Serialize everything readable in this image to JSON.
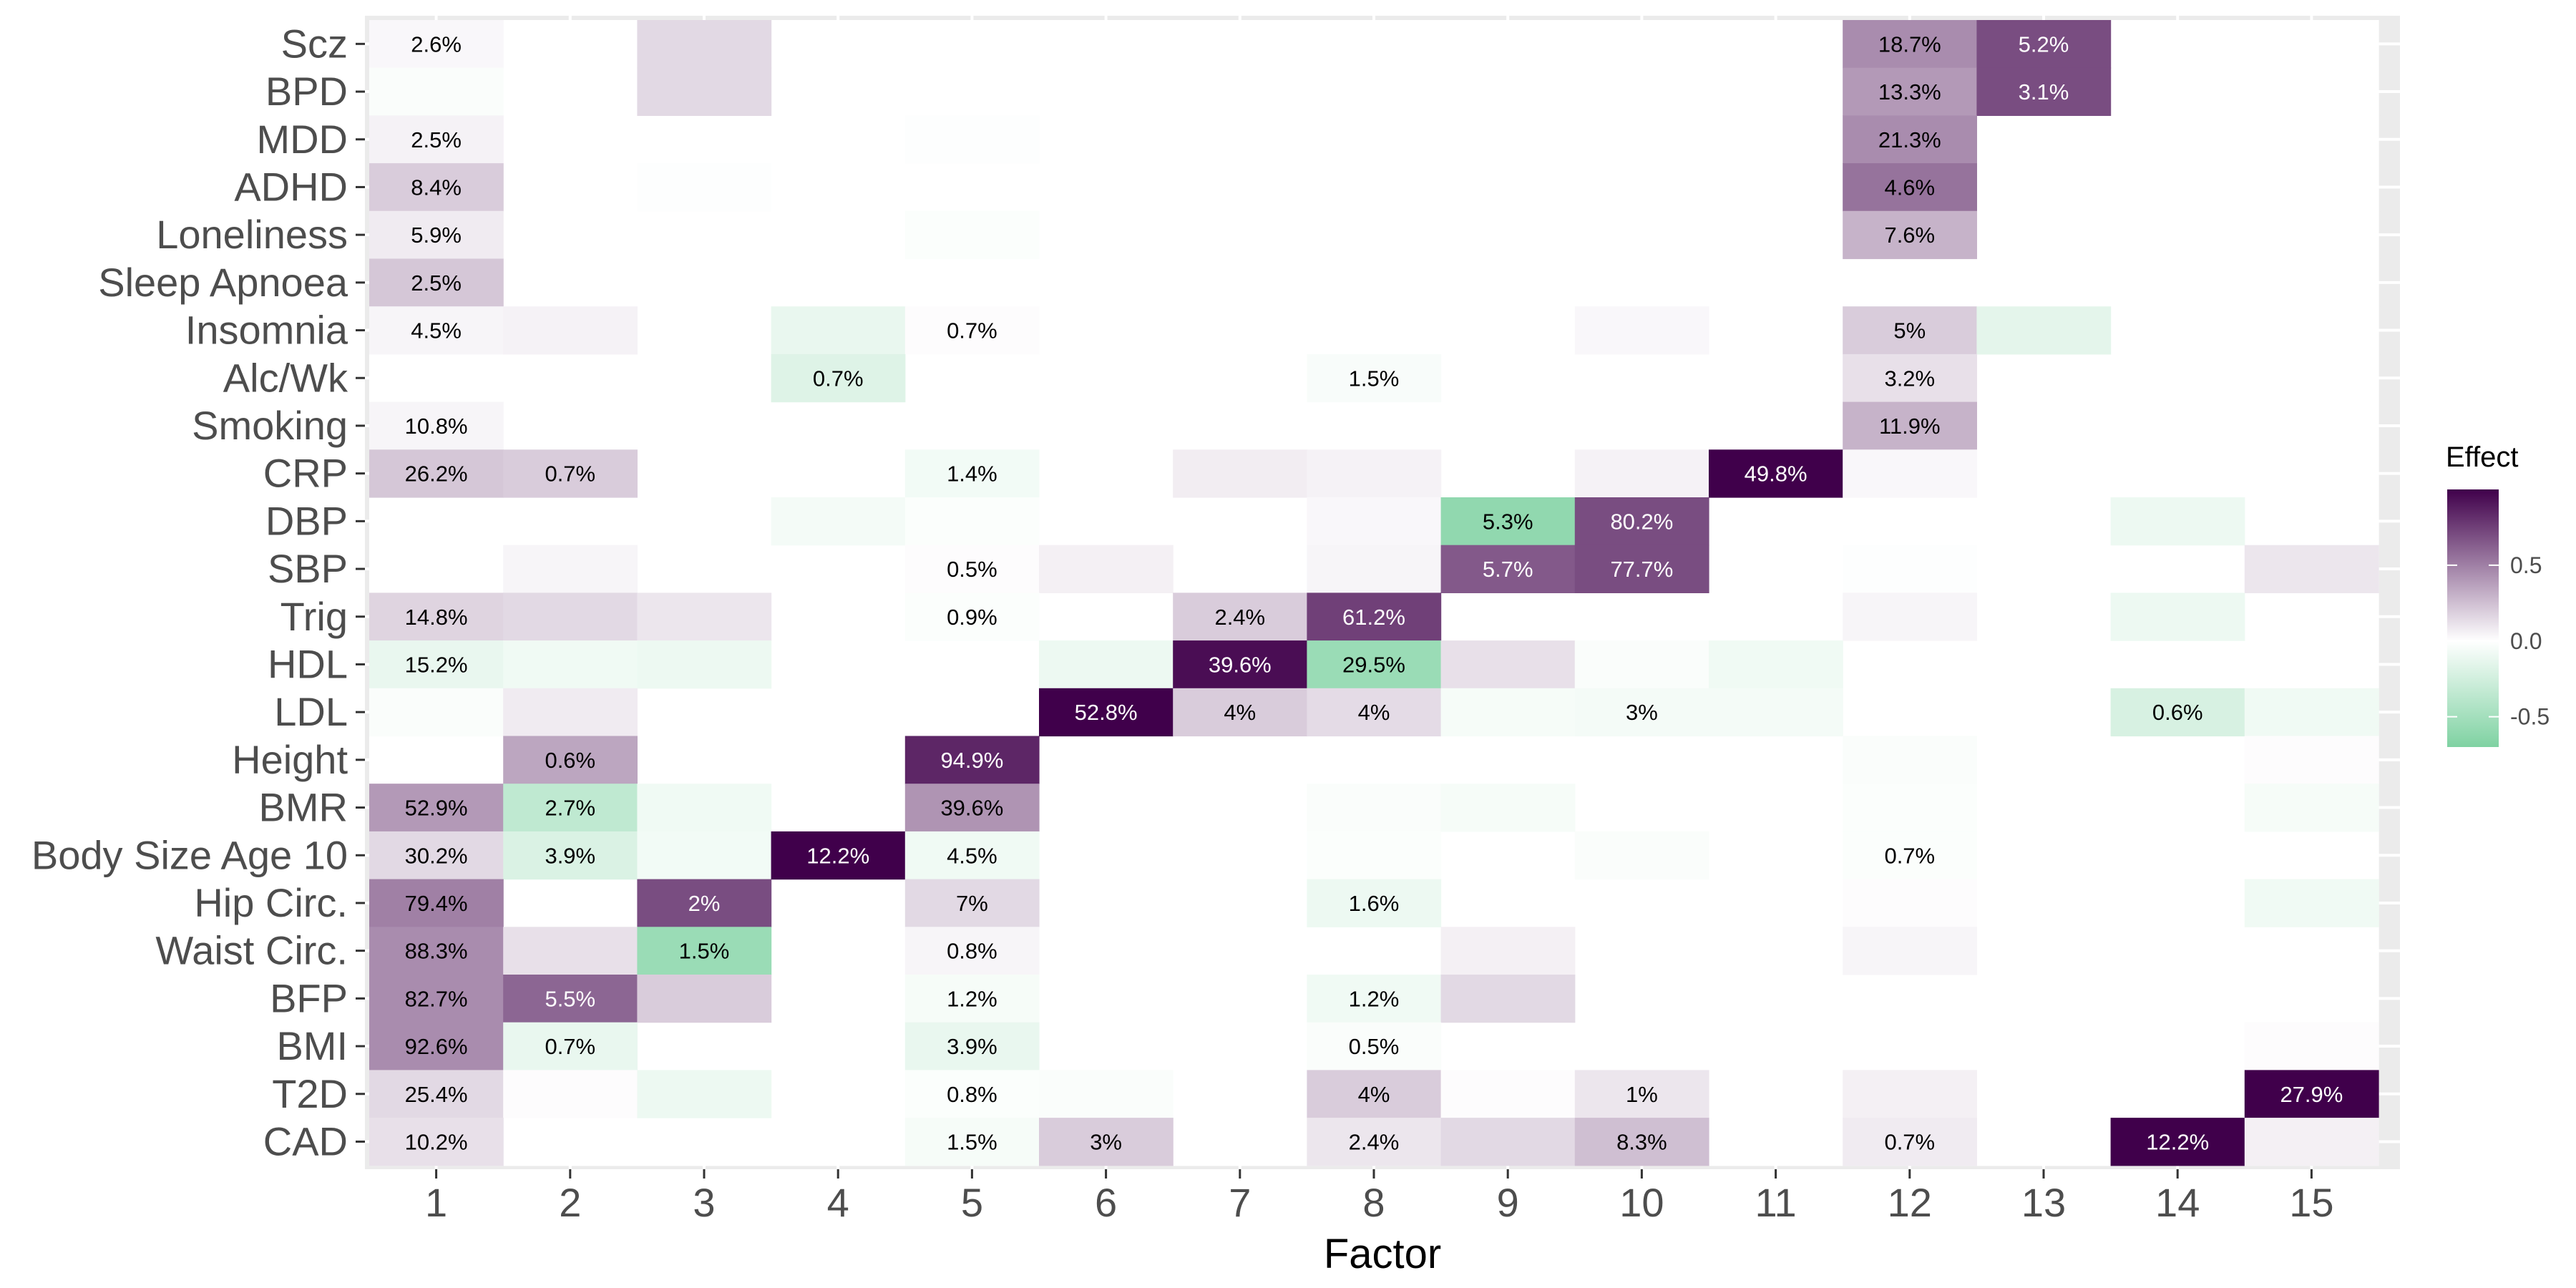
{
  "chart_data": {
    "type": "heatmap",
    "xlabel": "Factor",
    "ylabel": "",
    "x_categories": [
      "1",
      "2",
      "3",
      "4",
      "5",
      "6",
      "7",
      "8",
      "9",
      "10",
      "11",
      "12",
      "13",
      "14",
      "15"
    ],
    "y_categories": [
      "Scz",
      "BPD",
      "MDD",
      "ADHD",
      "Loneliness",
      "Sleep Apnoea",
      "Insomnia",
      "Alc/Wk",
      "Smoking",
      "CRP",
      "DBP",
      "SBP",
      "Trig",
      "HDL",
      "LDL",
      "Height",
      "BMR",
      "Body Size Age 10",
      "Hip Circ.",
      "Waist Circ.",
      "BFP",
      "BMI",
      "T2D",
      "CAD"
    ],
    "legend": {
      "title": "Effect",
      "ticks": [
        0.5,
        0.0,
        -0.5
      ],
      "tick_labels": [
        "0.5",
        "0.0",
        "-0.5"
      ],
      "range": [
        -0.7,
        1.0
      ],
      "colors": {
        "low": "#7fd2a2",
        "mid": "#ffffff",
        "high": "#40004b"
      }
    },
    "grid": true,
    "cells": [
      {
        "y": "Scz",
        "x": 1,
        "v": 0.03,
        "label": "2.6%"
      },
      {
        "y": "Scz",
        "x": 3,
        "v": 0.15
      },
      {
        "y": "Scz",
        "x": 12,
        "v": 0.45,
        "label": "18.7%"
      },
      {
        "y": "Scz",
        "x": 13,
        "v": 0.7,
        "label": "5.2%"
      },
      {
        "y": "BPD",
        "x": 1,
        "v": -0.03
      },
      {
        "y": "BPD",
        "x": 3,
        "v": 0.15
      },
      {
        "y": "BPD",
        "x": 12,
        "v": 0.4,
        "label": "13.3%"
      },
      {
        "y": "BPD",
        "x": 13,
        "v": 0.7,
        "label": "3.1%"
      },
      {
        "y": "MDD",
        "x": 1,
        "v": 0.05,
        "label": "2.5%"
      },
      {
        "y": "MDD",
        "x": 5,
        "v": -0.01
      },
      {
        "y": "MDD",
        "x": 12,
        "v": 0.45,
        "label": "21.3%"
      },
      {
        "y": "ADHD",
        "x": 1,
        "v": 0.2,
        "label": "8.4%"
      },
      {
        "y": "ADHD",
        "x": 3,
        "v": -0.01
      },
      {
        "y": "ADHD",
        "x": 12,
        "v": 0.55,
        "label": "4.6%"
      },
      {
        "y": "Loneliness",
        "x": 1,
        "v": 0.08,
        "label": "5.9%"
      },
      {
        "y": "Loneliness",
        "x": 5,
        "v": -0.02
      },
      {
        "y": "Loneliness",
        "x": 12,
        "v": 0.3,
        "label": "7.6%"
      },
      {
        "y": "Sleep Apnoea",
        "x": 1,
        "v": 0.22,
        "label": "2.5%"
      },
      {
        "y": "Insomnia",
        "x": 1,
        "v": 0.04,
        "label": "4.5%"
      },
      {
        "y": "Insomnia",
        "x": 2,
        "v": 0.05
      },
      {
        "y": "Insomnia",
        "x": 4,
        "v": -0.12
      },
      {
        "y": "Insomnia",
        "x": 5,
        "v": 0.01,
        "label": "0.7%"
      },
      {
        "y": "Insomnia",
        "x": 10,
        "v": 0.03
      },
      {
        "y": "Insomnia",
        "x": 12,
        "v": 0.2,
        "label": "5%"
      },
      {
        "y": "Insomnia",
        "x": 13,
        "v": -0.15
      },
      {
        "y": "Alc/Wk",
        "x": 4,
        "v": -0.18,
        "label": "0.7%"
      },
      {
        "y": "Alc/Wk",
        "x": 8,
        "v": -0.04,
        "label": "1.5%"
      },
      {
        "y": "Alc/Wk",
        "x": 12,
        "v": 0.12,
        "label": "3.2%"
      },
      {
        "y": "Smoking",
        "x": 1,
        "v": 0.04,
        "label": "10.8%"
      },
      {
        "y": "Smoking",
        "x": 12,
        "v": 0.3,
        "label": "11.9%"
      },
      {
        "y": "CRP",
        "x": 1,
        "v": 0.22,
        "label": "26.2%"
      },
      {
        "y": "CRP",
        "x": 2,
        "v": 0.2,
        "label": "0.7%"
      },
      {
        "y": "CRP",
        "x": 5,
        "v": -0.07,
        "label": "1.4%"
      },
      {
        "y": "CRP",
        "x": 7,
        "v": 0.07
      },
      {
        "y": "CRP",
        "x": 8,
        "v": 0.05
      },
      {
        "y": "CRP",
        "x": 10,
        "v": 0.05
      },
      {
        "y": "CRP",
        "x": 11,
        "v": 1.0,
        "label": "49.8%"
      },
      {
        "y": "CRP",
        "x": 12,
        "v": 0.03
      },
      {
        "y": "DBP",
        "x": 4,
        "v": -0.06
      },
      {
        "y": "DBP",
        "x": 5,
        "v": -0.02
      },
      {
        "y": "DBP",
        "x": 8,
        "v": 0.03
      },
      {
        "y": "DBP",
        "x": 9,
        "v": -0.6,
        "label": "5.3%"
      },
      {
        "y": "DBP",
        "x": 10,
        "v": 0.7,
        "label": "80.2%"
      },
      {
        "y": "DBP",
        "x": 14,
        "v": -0.1
      },
      {
        "y": "SBP",
        "x": 2,
        "v": 0.04
      },
      {
        "y": "SBP",
        "x": 5,
        "v": 0.01,
        "label": "0.5%"
      },
      {
        "y": "SBP",
        "x": 6,
        "v": 0.06
      },
      {
        "y": "SBP",
        "x": 8,
        "v": 0.04
      },
      {
        "y": "SBP",
        "x": 9,
        "v": 0.65,
        "label": "5.7%"
      },
      {
        "y": "SBP",
        "x": 10,
        "v": 0.7,
        "label": "77.7%"
      },
      {
        "y": "SBP",
        "x": 12,
        "v": -0.01
      },
      {
        "y": "SBP",
        "x": 15,
        "v": 0.1
      },
      {
        "y": "Trig",
        "x": 1,
        "v": 0.17,
        "label": "14.8%"
      },
      {
        "y": "Trig",
        "x": 2,
        "v": 0.15
      },
      {
        "y": "Trig",
        "x": 3,
        "v": 0.1
      },
      {
        "y": "Trig",
        "x": 5,
        "v": -0.02,
        "label": "0.9%"
      },
      {
        "y": "Trig",
        "x": 7,
        "v": 0.2,
        "label": "2.4%"
      },
      {
        "y": "Trig",
        "x": 8,
        "v": 0.75,
        "label": "61.2%"
      },
      {
        "y": "Trig",
        "x": 12,
        "v": 0.04
      },
      {
        "y": "Trig",
        "x": 14,
        "v": -0.1
      },
      {
        "y": "HDL",
        "x": 1,
        "v": -0.12,
        "label": "15.2%"
      },
      {
        "y": "HDL",
        "x": 2,
        "v": -0.08
      },
      {
        "y": "HDL",
        "x": 3,
        "v": -0.1
      },
      {
        "y": "HDL",
        "x": 6,
        "v": -0.1
      },
      {
        "y": "HDL",
        "x": 7,
        "v": 0.95,
        "label": "39.6%"
      },
      {
        "y": "HDL",
        "x": 8,
        "v": -0.55,
        "label": "29.5%"
      },
      {
        "y": "HDL",
        "x": 9,
        "v": 0.12
      },
      {
        "y": "HDL",
        "x": 10,
        "v": -0.03
      },
      {
        "y": "HDL",
        "x": 11,
        "v": -0.08
      },
      {
        "y": "LDL",
        "x": 1,
        "v": -0.03
      },
      {
        "y": "LDL",
        "x": 2,
        "v": 0.08
      },
      {
        "y": "LDL",
        "x": 6,
        "v": 1.0,
        "label": "52.8%"
      },
      {
        "y": "LDL",
        "x": 7,
        "v": 0.2,
        "label": "4%"
      },
      {
        "y": "LDL",
        "x": 8,
        "v": 0.14,
        "label": "4%"
      },
      {
        "y": "LDL",
        "x": 9,
        "v": -0.05
      },
      {
        "y": "LDL",
        "x": 10,
        "v": -0.06,
        "label": "3%"
      },
      {
        "y": "LDL",
        "x": 11,
        "v": -0.06
      },
      {
        "y": "LDL",
        "x": 14,
        "v": -0.22,
        "label": "0.6%"
      },
      {
        "y": "LDL",
        "x": 15,
        "v": -0.08
      },
      {
        "y": "Height",
        "x": 2,
        "v": 0.35,
        "label": "0.6%"
      },
      {
        "y": "Height",
        "x": 5,
        "v": 0.85,
        "label": "94.9%"
      },
      {
        "y": "Height",
        "x": 12,
        "v": -0.03
      },
      {
        "y": "Height",
        "x": 15,
        "v": 0.01
      },
      {
        "y": "BMR",
        "x": 1,
        "v": 0.4,
        "label": "52.9%"
      },
      {
        "y": "BMR",
        "x": 2,
        "v": -0.35,
        "label": "2.7%"
      },
      {
        "y": "BMR",
        "x": 3,
        "v": -0.08
      },
      {
        "y": "BMR",
        "x": 5,
        "v": 0.42,
        "label": "39.6%"
      },
      {
        "y": "BMR",
        "x": 8,
        "v": -0.03
      },
      {
        "y": "BMR",
        "x": 9,
        "v": -0.05
      },
      {
        "y": "BMR",
        "x": 12,
        "v": -0.02
      },
      {
        "y": "BMR",
        "x": 15,
        "v": -0.05
      },
      {
        "y": "Body Size Age 10",
        "x": 1,
        "v": 0.15,
        "label": "30.2%"
      },
      {
        "y": "Body Size Age 10",
        "x": 2,
        "v": -0.2,
        "label": "3.9%"
      },
      {
        "y": "Body Size Age 10",
        "x": 3,
        "v": -0.07
      },
      {
        "y": "Body Size Age 10",
        "x": 4,
        "v": 1.0,
        "label": "12.2%"
      },
      {
        "y": "Body Size Age 10",
        "x": 5,
        "v": -0.08,
        "label": "4.5%"
      },
      {
        "y": "Body Size Age 10",
        "x": 8,
        "v": -0.02
      },
      {
        "y": "Body Size Age 10",
        "x": 10,
        "v": -0.03
      },
      {
        "y": "Body Size Age 10",
        "x": 12,
        "v": -0.02,
        "label": "0.7%"
      },
      {
        "y": "Hip Circ.",
        "x": 1,
        "v": 0.5,
        "label": "79.4%"
      },
      {
        "y": "Hip Circ.",
        "x": 3,
        "v": 0.7,
        "label": "2%"
      },
      {
        "y": "Hip Circ.",
        "x": 5,
        "v": 0.15,
        "label": "7%"
      },
      {
        "y": "Hip Circ.",
        "x": 8,
        "v": -0.1,
        "label": "1.6%"
      },
      {
        "y": "Hip Circ.",
        "x": 12,
        "v": 0.01
      },
      {
        "y": "Hip Circ.",
        "x": 15,
        "v": -0.08
      },
      {
        "y": "Waist Circ.",
        "x": 1,
        "v": 0.45,
        "label": "88.3%"
      },
      {
        "y": "Waist Circ.",
        "x": 2,
        "v": 0.12
      },
      {
        "y": "Waist Circ.",
        "x": 3,
        "v": -0.55,
        "label": "1.5%"
      },
      {
        "y": "Waist Circ.",
        "x": 5,
        "v": 0.04,
        "label": "0.8%"
      },
      {
        "y": "Waist Circ.",
        "x": 9,
        "v": 0.06
      },
      {
        "y": "Waist Circ.",
        "x": 12,
        "v": 0.04
      },
      {
        "y": "BFP",
        "x": 1,
        "v": 0.45,
        "label": "82.7%"
      },
      {
        "y": "BFP",
        "x": 2,
        "v": 0.6,
        "label": "5.5%"
      },
      {
        "y": "BFP",
        "x": 3,
        "v": 0.2
      },
      {
        "y": "BFP",
        "x": 5,
        "v": -0.05,
        "label": "1.2%"
      },
      {
        "y": "BFP",
        "x": 8,
        "v": -0.08,
        "label": "1.2%"
      },
      {
        "y": "BFP",
        "x": 9,
        "v": 0.15
      },
      {
        "y": "BMI",
        "x": 1,
        "v": 0.45,
        "label": "92.6%"
      },
      {
        "y": "BMI",
        "x": 2,
        "v": -0.12,
        "label": "0.7%"
      },
      {
        "y": "BMI",
        "x": 5,
        "v": -0.12,
        "label": "3.9%"
      },
      {
        "y": "BMI",
        "x": 8,
        "v": -0.03,
        "label": "0.5%"
      },
      {
        "y": "BMI",
        "x": 15,
        "v": 0.01
      },
      {
        "y": "T2D",
        "x": 1,
        "v": 0.15,
        "label": "25.4%"
      },
      {
        "y": "T2D",
        "x": 2,
        "v": 0.01
      },
      {
        "y": "T2D",
        "x": 3,
        "v": -0.1
      },
      {
        "y": "T2D",
        "x": 5,
        "v": -0.02,
        "label": "0.8%"
      },
      {
        "y": "T2D",
        "x": 6,
        "v": -0.03
      },
      {
        "y": "T2D",
        "x": 8,
        "v": 0.2,
        "label": "4%"
      },
      {
        "y": "T2D",
        "x": 9,
        "v": 0.01
      },
      {
        "y": "T2D",
        "x": 10,
        "v": 0.1,
        "label": "1%"
      },
      {
        "y": "T2D",
        "x": 12,
        "v": 0.06
      },
      {
        "y": "T2D",
        "x": 15,
        "v": 1.0,
        "label": "27.9%"
      },
      {
        "y": "CAD",
        "x": 1,
        "v": 0.12,
        "label": "10.2%"
      },
      {
        "y": "CAD",
        "x": 5,
        "v": -0.05,
        "label": "1.5%"
      },
      {
        "y": "CAD",
        "x": 6,
        "v": 0.2,
        "label": "3%"
      },
      {
        "y": "CAD",
        "x": 8,
        "v": 0.1,
        "label": "2.4%"
      },
      {
        "y": "CAD",
        "x": 9,
        "v": 0.15
      },
      {
        "y": "CAD",
        "x": 10,
        "v": 0.25,
        "label": "8.3%"
      },
      {
        "y": "CAD",
        "x": 12,
        "v": 0.08,
        "label": "0.7%"
      },
      {
        "y": "CAD",
        "x": 14,
        "v": 1.0,
        "label": "12.2%"
      },
      {
        "y": "CAD",
        "x": 15,
        "v": 0.06
      }
    ]
  }
}
